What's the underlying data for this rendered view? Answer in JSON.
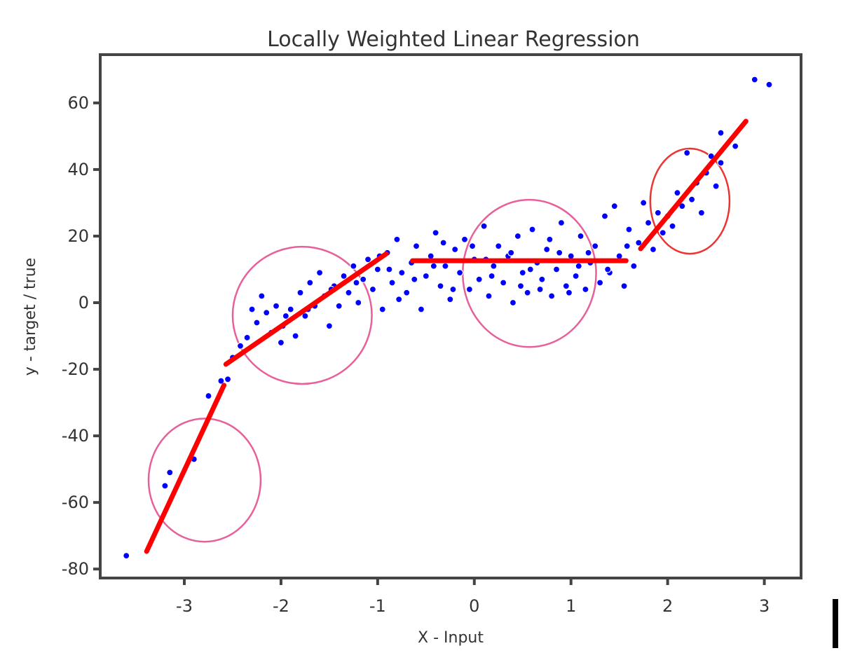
{
  "chart_data": {
    "type": "scatter",
    "title": "Locally Weighted Linear Regression",
    "xlabel": "X - Input",
    "ylabel": "y - target / true",
    "xlim": [
      -3.87,
      3.38
    ],
    "ylim": [
      -82.7,
      74.5
    ],
    "xticks": [
      -3,
      -2,
      -1,
      0,
      1,
      2,
      3
    ],
    "yticks": [
      -80,
      -60,
      -40,
      -20,
      0,
      20,
      40,
      60
    ],
    "grid": false,
    "colors": {
      "points": "#0000ff",
      "fit": "#ff0000",
      "windows_pink": "#e8609a",
      "window_red": "#ee3333",
      "frame": "#444444"
    },
    "points": [
      [
        -3.6,
        -76
      ],
      [
        -3.2,
        -55
      ],
      [
        -3.15,
        -51
      ],
      [
        -2.9,
        -47
      ],
      [
        -2.75,
        -28
      ],
      [
        -2.62,
        -23.5
      ],
      [
        -2.55,
        -23
      ],
      [
        -2.5,
        -16.5
      ],
      [
        -2.42,
        -13
      ],
      [
        -2.35,
        -10.5
      ],
      [
        -2.3,
        -2
      ],
      [
        -2.25,
        -6
      ],
      [
        -2.2,
        2
      ],
      [
        -2.15,
        -3
      ],
      [
        -2.1,
        -9
      ],
      [
        -2.05,
        -1
      ],
      [
        -2,
        -12
      ],
      [
        -1.95,
        -4
      ],
      [
        -1.9,
        -2
      ],
      [
        -1.85,
        -10
      ],
      [
        -1.8,
        3
      ],
      [
        -1.75,
        -4
      ],
      [
        -1.7,
        6
      ],
      [
        -1.65,
        -1
      ],
      [
        -1.6,
        9
      ],
      [
        -1.55,
        2
      ],
      [
        -1.5,
        -7
      ],
      [
        -1.45,
        5
      ],
      [
        -1.4,
        -1
      ],
      [
        -1.35,
        8
      ],
      [
        -1.3,
        3
      ],
      [
        -1.25,
        11
      ],
      [
        -1.2,
        0
      ],
      [
        -1.15,
        7
      ],
      [
        -1.1,
        13
      ],
      [
        -1.05,
        4
      ],
      [
        -1.0,
        10
      ],
      [
        -0.95,
        -2
      ],
      [
        -0.9,
        15
      ],
      [
        -0.85,
        6
      ],
      [
        -0.8,
        19
      ],
      [
        -0.75,
        9
      ],
      [
        -0.7,
        3
      ],
      [
        -0.65,
        12
      ],
      [
        -0.6,
        17
      ],
      [
        -0.55,
        -2
      ],
      [
        -0.5,
        8
      ],
      [
        -0.45,
        14
      ],
      [
        -0.4,
        21
      ],
      [
        -0.35,
        5
      ],
      [
        -0.3,
        11
      ],
      [
        -0.25,
        1
      ],
      [
        -0.2,
        16
      ],
      [
        -0.15,
        9
      ],
      [
        -0.1,
        19
      ],
      [
        -0.05,
        4
      ],
      [
        0,
        13
      ],
      [
        0.05,
        7
      ],
      [
        0.1,
        23
      ],
      [
        0.15,
        2
      ],
      [
        0.2,
        11
      ],
      [
        0.25,
        17
      ],
      [
        0.3,
        6
      ],
      [
        0.35,
        14
      ],
      [
        0.4,
        0
      ],
      [
        0.45,
        20
      ],
      [
        0.5,
        9
      ],
      [
        0.55,
        3
      ],
      [
        0.6,
        22
      ],
      [
        0.65,
        12
      ],
      [
        0.7,
        7
      ],
      [
        0.75,
        16
      ],
      [
        0.8,
        2
      ],
      [
        0.85,
        10
      ],
      [
        0.9,
        24
      ],
      [
        0.95,
        5
      ],
      [
        1.0,
        14
      ],
      [
        1.05,
        8
      ],
      [
        1.1,
        20
      ],
      [
        1.15,
        4
      ],
      [
        1.2,
        12
      ],
      [
        1.25,
        17
      ],
      [
        1.3,
        6
      ],
      [
        1.35,
        26
      ],
      [
        1.4,
        9
      ],
      [
        1.45,
        29
      ],
      [
        1.5,
        14
      ],
      [
        1.55,
        5
      ],
      [
        1.6,
        22
      ],
      [
        1.65,
        11
      ],
      [
        1.7,
        18
      ],
      [
        1.75,
        30
      ],
      [
        1.8,
        24
      ],
      [
        1.85,
        16
      ],
      [
        1.9,
        27
      ],
      [
        1.95,
        21
      ],
      [
        2.0,
        26
      ],
      [
        2.05,
        23
      ],
      [
        2.1,
        33
      ],
      [
        2.15,
        29
      ],
      [
        2.2,
        45
      ],
      [
        2.25,
        31
      ],
      [
        2.3,
        36
      ],
      [
        2.35,
        27
      ],
      [
        2.4,
        39
      ],
      [
        2.45,
        44
      ],
      [
        2.5,
        35
      ],
      [
        2.55,
        42
      ],
      [
        2.55,
        51
      ],
      [
        2.7,
        47
      ],
      [
        2.9,
        67
      ],
      [
        3.05,
        65.5
      ],
      [
        -1.98,
        -7
      ],
      [
        -1.72,
        -2
      ],
      [
        -1.48,
        4
      ],
      [
        -1.22,
        6
      ],
      [
        -0.98,
        14
      ],
      [
        -0.78,
        1
      ],
      [
        -0.62,
        7
      ],
      [
        -0.42,
        11
      ],
      [
        -0.22,
        4
      ],
      [
        -0.02,
        17
      ],
      [
        0.18,
        8
      ],
      [
        0.38,
        15
      ],
      [
        0.58,
        10
      ],
      [
        0.78,
        19
      ],
      [
        0.98,
        3
      ],
      [
        1.18,
        15
      ],
      [
        1.38,
        10
      ],
      [
        1.58,
        17
      ],
      [
        0.12,
        13
      ],
      [
        -0.32,
        18
      ],
      [
        0.68,
        4
      ],
      [
        1.08,
        11
      ],
      [
        -0.88,
        10
      ],
      [
        0.48,
        5
      ],
      [
        0.88,
        15
      ]
    ],
    "fit_segments": [
      [
        [
          -3.39,
          -74.7
        ],
        [
          -2.59,
          -24.8
        ]
      ],
      [
        [
          -2.57,
          -18.5
        ],
        [
          -0.91,
          14.7
        ]
      ],
      [
        [
          -0.64,
          12.6
        ],
        [
          1.57,
          12.6
        ]
      ],
      [
        [
          1.72,
          16.2
        ],
        [
          2.81,
          54.5
        ]
      ]
    ],
    "windows": [
      {
        "cx": -2.79,
        "cy": -53.3,
        "rx": 0.58,
        "ry": 18.5,
        "color": "pink"
      },
      {
        "cx": -1.78,
        "cy": -3.8,
        "rx": 0.72,
        "ry": 20.6,
        "color": "pink"
      },
      {
        "cx": 0.57,
        "cy": 8.8,
        "rx": 0.69,
        "ry": 22.1,
        "color": "pink"
      },
      {
        "cx": 2.23,
        "cy": 30.5,
        "rx": 0.41,
        "ry": 15.8,
        "color": "red"
      }
    ]
  }
}
